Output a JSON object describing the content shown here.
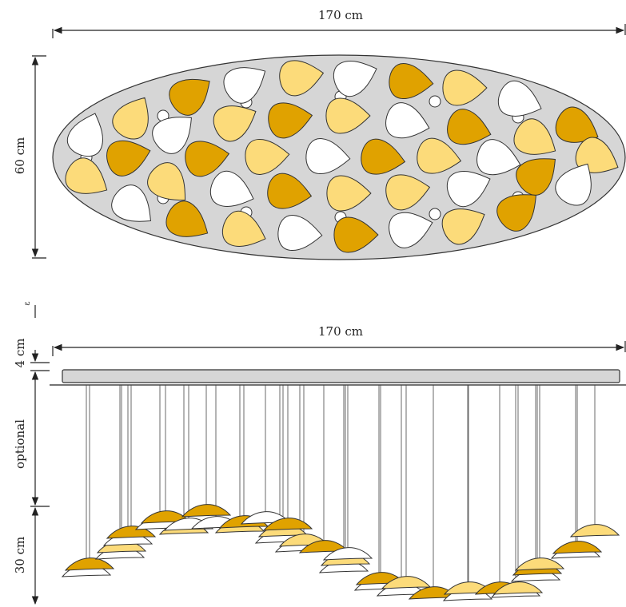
{
  "top_view": {
    "width_label": "170 cm",
    "depth_label": "60 cm"
  },
  "side_view": {
    "width_label": "170 cm",
    "canopy_label": "4 cm",
    "canopy_mark": "ε",
    "cable_label": "optional",
    "drop_label": "30 cm"
  },
  "colors": {
    "dark_amber": "#e0a200",
    "light_amber": "#fcdb7a",
    "white": "#ffffff",
    "plate": "#d6d6d6"
  }
}
